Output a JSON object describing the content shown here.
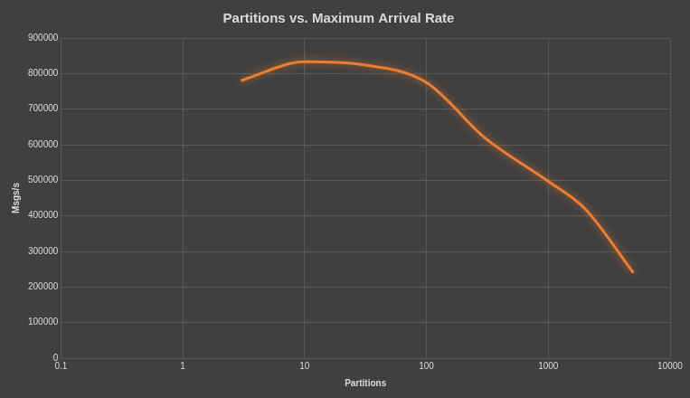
{
  "chart_data": {
    "type": "line",
    "title": "Partitions vs. Maximum Arrival Rate",
    "x_label": "Partitions",
    "y_label": "Msgs/s",
    "x": [
      3,
      10,
      30,
      100,
      300,
      1000,
      2000,
      5000
    ],
    "values": [
      780000,
      833000,
      825000,
      775000,
      620000,
      497000,
      420000,
      240000
    ],
    "color": "#ed7d31",
    "marker": "none",
    "line_style": "solid",
    "log": "x",
    "xlim": [
      0.1,
      10000
    ],
    "xticks": [
      0.1,
      1,
      10,
      100,
      1000,
      10000
    ],
    "ylim": [
      0,
      900000
    ],
    "yticks": [
      0,
      100000,
      200000,
      300000,
      400000,
      500000,
      600000,
      700000,
      800000,
      900000
    ],
    "grid": true
  }
}
